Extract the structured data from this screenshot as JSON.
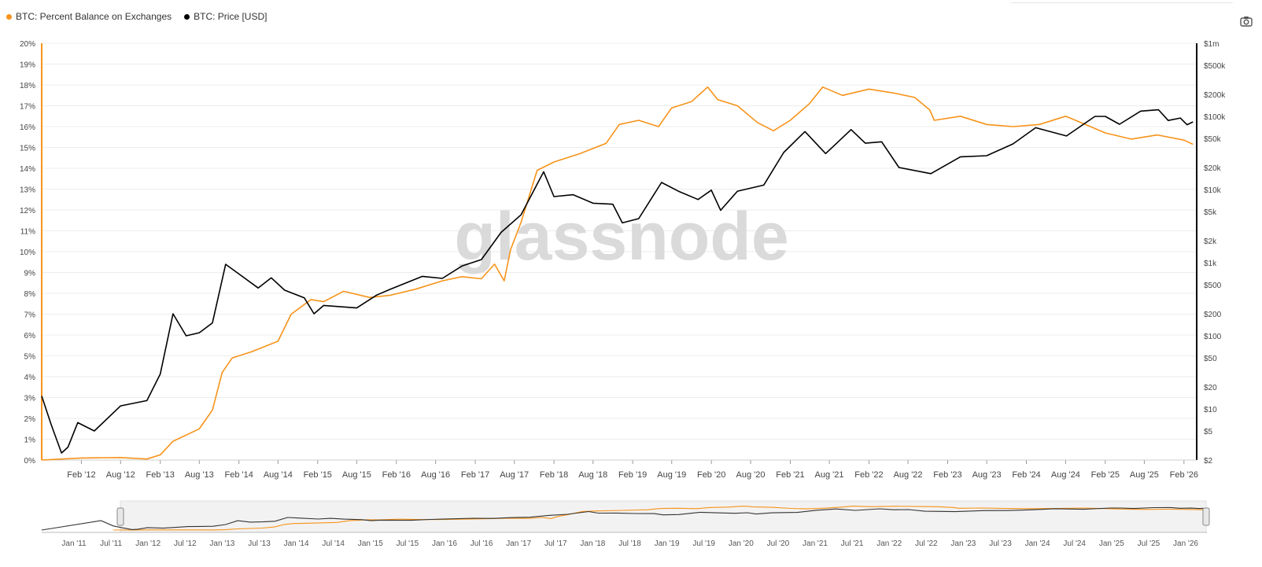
{
  "legend": {
    "items": [
      {
        "label": "BTC: Percent Balance on Exchanges",
        "color": "#f7931a"
      },
      {
        "label": "BTC: Price [USD]",
        "color": "#000000"
      }
    ]
  },
  "toolbar": {
    "camera_icon": "camera-icon"
  },
  "watermark": "glassnode",
  "chart_data": {
    "type": "line",
    "left_axis": {
      "unit": "%",
      "range": [
        0,
        20
      ],
      "ticks": [
        "0%",
        "1%",
        "2%",
        "3%",
        "4%",
        "5%",
        "6%",
        "7%",
        "8%",
        "9%",
        "10%",
        "11%",
        "12%",
        "13%",
        "14%",
        "15%",
        "16%",
        "17%",
        "18%",
        "19%",
        "20%"
      ]
    },
    "right_axis": {
      "scale": "log",
      "range": [
        2,
        1000000
      ],
      "ticks": [
        {
          "value": 2,
          "label": "$2"
        },
        {
          "value": 5,
          "label": "$5"
        },
        {
          "value": 10,
          "label": "$10"
        },
        {
          "value": 20,
          "label": "$20"
        },
        {
          "value": 50,
          "label": "$50"
        },
        {
          "value": 100,
          "label": "$100"
        },
        {
          "value": 200,
          "label": "$200"
        },
        {
          "value": 500,
          "label": "$500"
        },
        {
          "value": 1000,
          "label": "$1k"
        },
        {
          "value": 2000,
          "label": "$2k"
        },
        {
          "value": 5000,
          "label": "$5k"
        },
        {
          "value": 10000,
          "label": "$10k"
        },
        {
          "value": 20000,
          "label": "$20k"
        },
        {
          "value": 50000,
          "label": "$50k"
        },
        {
          "value": 100000,
          "label": "$100k"
        },
        {
          "value": 200000,
          "label": "$200k"
        },
        {
          "value": 500000,
          "label": "$500k"
        },
        {
          "value": 1000000,
          "label": "$1m"
        }
      ]
    },
    "x_axis": {
      "range": [
        "2011-08-01",
        "2026-04-01"
      ],
      "ticks": [
        {
          "date": "2012-02-01",
          "label": "Feb '12"
        },
        {
          "date": "2012-08-01",
          "label": "Aug '12"
        },
        {
          "date": "2013-02-01",
          "label": "Feb '13"
        },
        {
          "date": "2013-08-01",
          "label": "Aug '13"
        },
        {
          "date": "2014-02-01",
          "label": "Feb '14"
        },
        {
          "date": "2014-08-01",
          "label": "Aug '14"
        },
        {
          "date": "2015-02-01",
          "label": "Feb '15"
        },
        {
          "date": "2015-08-01",
          "label": "Aug '15"
        },
        {
          "date": "2016-02-01",
          "label": "Feb '16"
        },
        {
          "date": "2016-08-01",
          "label": "Aug '16"
        },
        {
          "date": "2017-02-01",
          "label": "Feb '17"
        },
        {
          "date": "2017-08-01",
          "label": "Aug '17"
        },
        {
          "date": "2018-02-01",
          "label": "Feb '18"
        },
        {
          "date": "2018-08-01",
          "label": "Aug '18"
        },
        {
          "date": "2019-02-01",
          "label": "Feb '19"
        },
        {
          "date": "2019-08-01",
          "label": "Aug '19"
        },
        {
          "date": "2020-02-01",
          "label": "Feb '20"
        },
        {
          "date": "2020-08-01",
          "label": "Aug '20"
        },
        {
          "date": "2021-02-01",
          "label": "Feb '21"
        },
        {
          "date": "2021-08-01",
          "label": "Aug '21"
        },
        {
          "date": "2022-02-01",
          "label": "Feb '22"
        },
        {
          "date": "2022-08-01",
          "label": "Aug '22"
        },
        {
          "date": "2023-02-01",
          "label": "Feb '23"
        },
        {
          "date": "2023-08-01",
          "label": "Aug '23"
        },
        {
          "date": "2024-02-01",
          "label": "Feb '24"
        },
        {
          "date": "2024-08-01",
          "label": "Aug '24"
        },
        {
          "date": "2025-02-01",
          "label": "Feb '25"
        },
        {
          "date": "2025-08-01",
          "label": "Aug '25"
        },
        {
          "date": "2026-02-01",
          "label": "Feb '26"
        }
      ]
    },
    "grid": true,
    "legend_position": "top-left",
    "series": [
      {
        "name": "BTC: Percent Balance on Exchanges",
        "axis": "left",
        "color": "#f7931a",
        "points": [
          [
            "2011-08-01",
            0.0
          ],
          [
            "2011-11-01",
            0.05
          ],
          [
            "2012-02-01",
            0.1
          ],
          [
            "2012-08-01",
            0.12
          ],
          [
            "2012-12-01",
            0.05
          ],
          [
            "2013-02-01",
            0.25
          ],
          [
            "2013-04-01",
            0.9
          ],
          [
            "2013-08-01",
            1.5
          ],
          [
            "2013-10-01",
            2.4
          ],
          [
            "2013-11-15",
            4.2
          ],
          [
            "2014-01-01",
            4.9
          ],
          [
            "2014-04-01",
            5.2
          ],
          [
            "2014-08-01",
            5.7
          ],
          [
            "2014-10-01",
            7.0
          ],
          [
            "2015-01-01",
            7.7
          ],
          [
            "2015-03-01",
            7.6
          ],
          [
            "2015-06-01",
            8.1
          ],
          [
            "2015-10-01",
            7.8
          ],
          [
            "2016-01-01",
            7.9
          ],
          [
            "2016-05-01",
            8.2
          ],
          [
            "2016-09-01",
            8.6
          ],
          [
            "2016-12-01",
            8.8
          ],
          [
            "2017-03-01",
            8.7
          ],
          [
            "2017-05-01",
            9.4
          ],
          [
            "2017-06-15",
            8.6
          ],
          [
            "2017-07-15",
            10.1
          ],
          [
            "2017-09-01",
            11.4
          ],
          [
            "2017-11-15",
            13.9
          ],
          [
            "2018-02-01",
            14.3
          ],
          [
            "2018-06-01",
            14.7
          ],
          [
            "2018-10-01",
            15.2
          ],
          [
            "2018-12-01",
            16.1
          ],
          [
            "2019-03-01",
            16.3
          ],
          [
            "2019-06-01",
            16.0
          ],
          [
            "2019-08-01",
            16.9
          ],
          [
            "2019-11-01",
            17.2
          ],
          [
            "2020-01-15",
            17.9
          ],
          [
            "2020-03-01",
            17.3
          ],
          [
            "2020-06-01",
            17.0
          ],
          [
            "2020-09-01",
            16.2
          ],
          [
            "2020-11-15",
            15.8
          ],
          [
            "2021-02-01",
            16.3
          ],
          [
            "2021-05-01",
            17.1
          ],
          [
            "2021-07-01",
            17.9
          ],
          [
            "2021-10-01",
            17.5
          ],
          [
            "2022-02-01",
            17.8
          ],
          [
            "2022-06-01",
            17.6
          ],
          [
            "2022-09-01",
            17.4
          ],
          [
            "2022-11-10",
            16.8
          ],
          [
            "2022-12-01",
            16.3
          ],
          [
            "2023-04-01",
            16.5
          ],
          [
            "2023-08-01",
            16.1
          ],
          [
            "2023-12-01",
            16.0
          ],
          [
            "2024-04-01",
            16.1
          ],
          [
            "2024-08-01",
            16.5
          ],
          [
            "2024-11-01",
            16.1
          ],
          [
            "2025-02-01",
            15.7
          ],
          [
            "2025-06-01",
            15.4
          ],
          [
            "2025-10-01",
            15.6
          ],
          [
            "2026-02-01",
            15.35
          ],
          [
            "2026-03-15",
            15.15
          ]
        ]
      },
      {
        "name": "BTC: Price [USD]",
        "axis": "right",
        "color": "#000000",
        "points": [
          [
            "2011-08-01",
            15
          ],
          [
            "2011-09-15",
            6
          ],
          [
            "2011-11-01",
            2.5
          ],
          [
            "2011-12-01",
            3
          ],
          [
            "2012-01-15",
            6.5
          ],
          [
            "2012-04-01",
            5
          ],
          [
            "2012-08-01",
            11
          ],
          [
            "2012-12-01",
            13
          ],
          [
            "2013-02-01",
            30
          ],
          [
            "2013-04-01",
            200
          ],
          [
            "2013-06-01",
            100
          ],
          [
            "2013-08-01",
            110
          ],
          [
            "2013-10-01",
            150
          ],
          [
            "2013-12-01",
            950
          ],
          [
            "2014-02-01",
            700
          ],
          [
            "2014-05-01",
            450
          ],
          [
            "2014-07-01",
            620
          ],
          [
            "2014-09-01",
            420
          ],
          [
            "2014-12-01",
            330
          ],
          [
            "2015-01-15",
            200
          ],
          [
            "2015-03-01",
            260
          ],
          [
            "2015-08-01",
            240
          ],
          [
            "2015-11-01",
            360
          ],
          [
            "2016-01-01",
            430
          ],
          [
            "2016-06-01",
            650
          ],
          [
            "2016-09-01",
            610
          ],
          [
            "2016-12-01",
            900
          ],
          [
            "2017-03-01",
            1100
          ],
          [
            "2017-06-01",
            2600
          ],
          [
            "2017-09-01",
            4500
          ],
          [
            "2017-12-15",
            17500
          ],
          [
            "2018-02-01",
            8000
          ],
          [
            "2018-05-01",
            8500
          ],
          [
            "2018-08-01",
            6500
          ],
          [
            "2018-11-01",
            6300
          ],
          [
            "2018-12-15",
            3500
          ],
          [
            "2019-03-01",
            4000
          ],
          [
            "2019-06-15",
            12500
          ],
          [
            "2019-09-01",
            9500
          ],
          [
            "2019-12-01",
            7300
          ],
          [
            "2020-02-01",
            9800
          ],
          [
            "2020-03-15",
            5200
          ],
          [
            "2020-06-01",
            9500
          ],
          [
            "2020-10-01",
            11500
          ],
          [
            "2021-01-01",
            32000
          ],
          [
            "2021-04-10",
            62000
          ],
          [
            "2021-07-15",
            31000
          ],
          [
            "2021-11-10",
            66000
          ],
          [
            "2022-01-15",
            43000
          ],
          [
            "2022-04-01",
            45000
          ],
          [
            "2022-06-20",
            20000
          ],
          [
            "2022-11-15",
            16500
          ],
          [
            "2023-04-01",
            28000
          ],
          [
            "2023-08-01",
            29000
          ],
          [
            "2023-12-01",
            42000
          ],
          [
            "2024-03-15",
            70000
          ],
          [
            "2024-08-05",
            54000
          ],
          [
            "2024-12-15",
            100000
          ],
          [
            "2025-02-01",
            100000
          ],
          [
            "2025-04-08",
            78000
          ],
          [
            "2025-07-15",
            118000
          ],
          [
            "2025-10-06",
            123000
          ],
          [
            "2025-11-20",
            88000
          ],
          [
            "2026-01-15",
            95000
          ],
          [
            "2026-02-15",
            77000
          ],
          [
            "2026-03-15",
            84000
          ]
        ]
      }
    ],
    "navigator": {
      "x_ticks": [
        "Jan '11",
        "Jul '11",
        "Jan '12",
        "Jul '12",
        "Jan '13",
        "Jul '13",
        "Jan '14",
        "Jul '14",
        "Jan '15",
        "Jul '15",
        "Jan '16",
        "Jul '16",
        "Jan '17",
        "Jul '17",
        "Jan '18",
        "Jul '18",
        "Jan '19",
        "Jul '19",
        "Jan '20",
        "Jul '20",
        "Jan '21",
        "Jul '21",
        "Jan '22",
        "Jul '22",
        "Jan '23",
        "Jul '23",
        "Jan '24",
        "Jul '24",
        "Jan '25",
        "Jul '25",
        "Jan '26"
      ]
    }
  }
}
